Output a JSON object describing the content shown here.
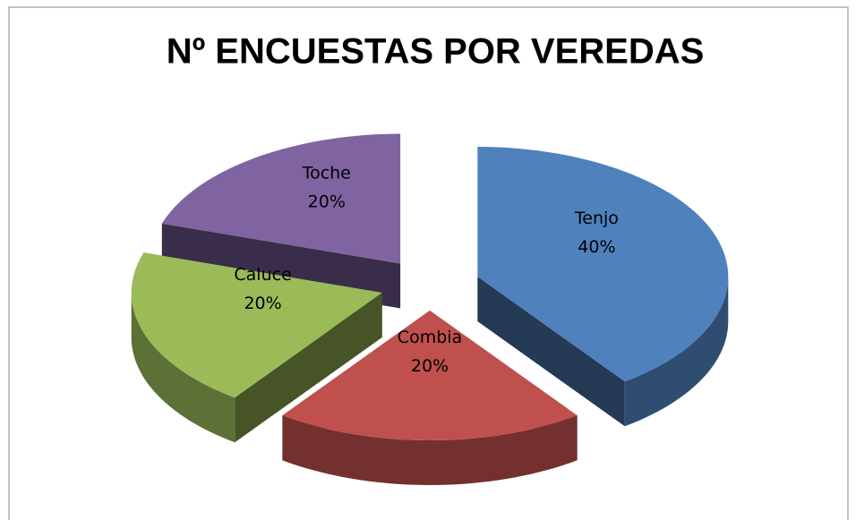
{
  "chart_data": {
    "type": "pie",
    "title": "Nº ENCUESTAS POR VEREDAS",
    "categories": [
      "Tenjo",
      "Combia",
      "Caluce",
      "Toche"
    ],
    "values": [
      40,
      20,
      20,
      20
    ],
    "value_labels": [
      "40%",
      "20%",
      "20%",
      "20%"
    ],
    "colors": [
      "#4f81bd",
      "#c0504d",
      "#9bbb59",
      "#8064a2"
    ]
  }
}
